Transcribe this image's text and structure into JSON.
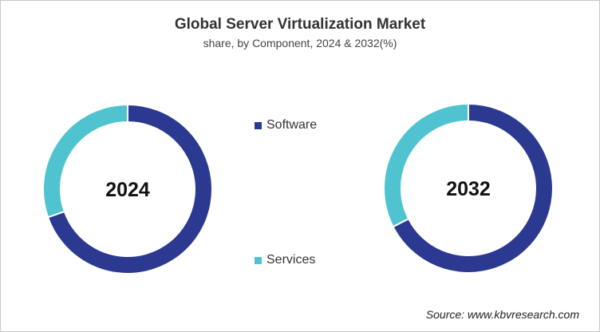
{
  "title": "Global Server Virtualization Market",
  "subtitle": "share, by Component, 2024 & 2032(%)",
  "source": "Source: www.kbvresearch.com",
  "colors": {
    "Software": "#2b3990",
    "Services": "#4fc3cf"
  },
  "chart_data": {
    "type": "pie",
    "style": "donut",
    "title": "Global Server Virtualization Market",
    "subtitle": "share, by Component, 2024 & 2032(%)",
    "legend": [
      "Software",
      "Services"
    ],
    "legend_placement": "center",
    "charts": [
      {
        "label": "2024",
        "series": [
          {
            "name": "Software",
            "value": 69.6
          },
          {
            "name": "Services",
            "value": 30.4
          }
        ]
      },
      {
        "label": "2032",
        "series": [
          {
            "name": "Software",
            "value": 67.5
          },
          {
            "name": "Services",
            "value": 32.5
          }
        ]
      }
    ]
  }
}
